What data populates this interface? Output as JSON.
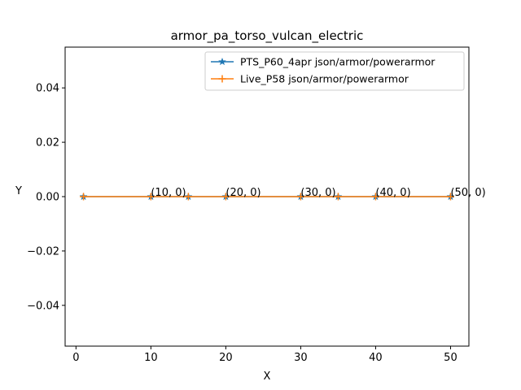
{
  "chart_data": {
    "type": "line",
    "title": "armor_pa_torso_vulcan_electric",
    "xlabel": "X",
    "ylabel": "Y",
    "xlim": [
      -1.45,
      52.45
    ],
    "ylim": [
      -0.055,
      0.055
    ],
    "xticks": [
      0,
      10,
      20,
      30,
      40,
      50
    ],
    "yticks": [
      -0.04,
      -0.02,
      0.0,
      0.02,
      0.04
    ],
    "ytick_labels": [
      "−0.04",
      "−0.02",
      "0.00",
      "0.02",
      "0.04"
    ],
    "grid": false,
    "legend_position": "top-right",
    "series": [
      {
        "name": "PTS_P60_4apr json/armor/powerarmor",
        "color": "#1f77b4",
        "marker": "star",
        "x": [
          1,
          10,
          15,
          20,
          30,
          35,
          40,
          50
        ],
        "y": [
          0,
          0,
          0,
          0,
          0,
          0,
          0,
          0
        ]
      },
      {
        "name": "Live_P58 json/armor/powerarmor",
        "color": "#ff7f0e",
        "marker": "plus",
        "x": [
          1,
          10,
          15,
          20,
          30,
          35,
          40,
          50
        ],
        "y": [
          0,
          0,
          0,
          0,
          0,
          0,
          0,
          0
        ]
      }
    ],
    "annotations": [
      {
        "x": 10,
        "y": 0,
        "text": "(10, 0)"
      },
      {
        "x": 20,
        "y": 0,
        "text": "(20, 0)"
      },
      {
        "x": 30,
        "y": 0,
        "text": "(30, 0)"
      },
      {
        "x": 40,
        "y": 0,
        "text": "(40, 0)"
      },
      {
        "x": 50,
        "y": 0,
        "text": "(50, 0)"
      }
    ]
  }
}
